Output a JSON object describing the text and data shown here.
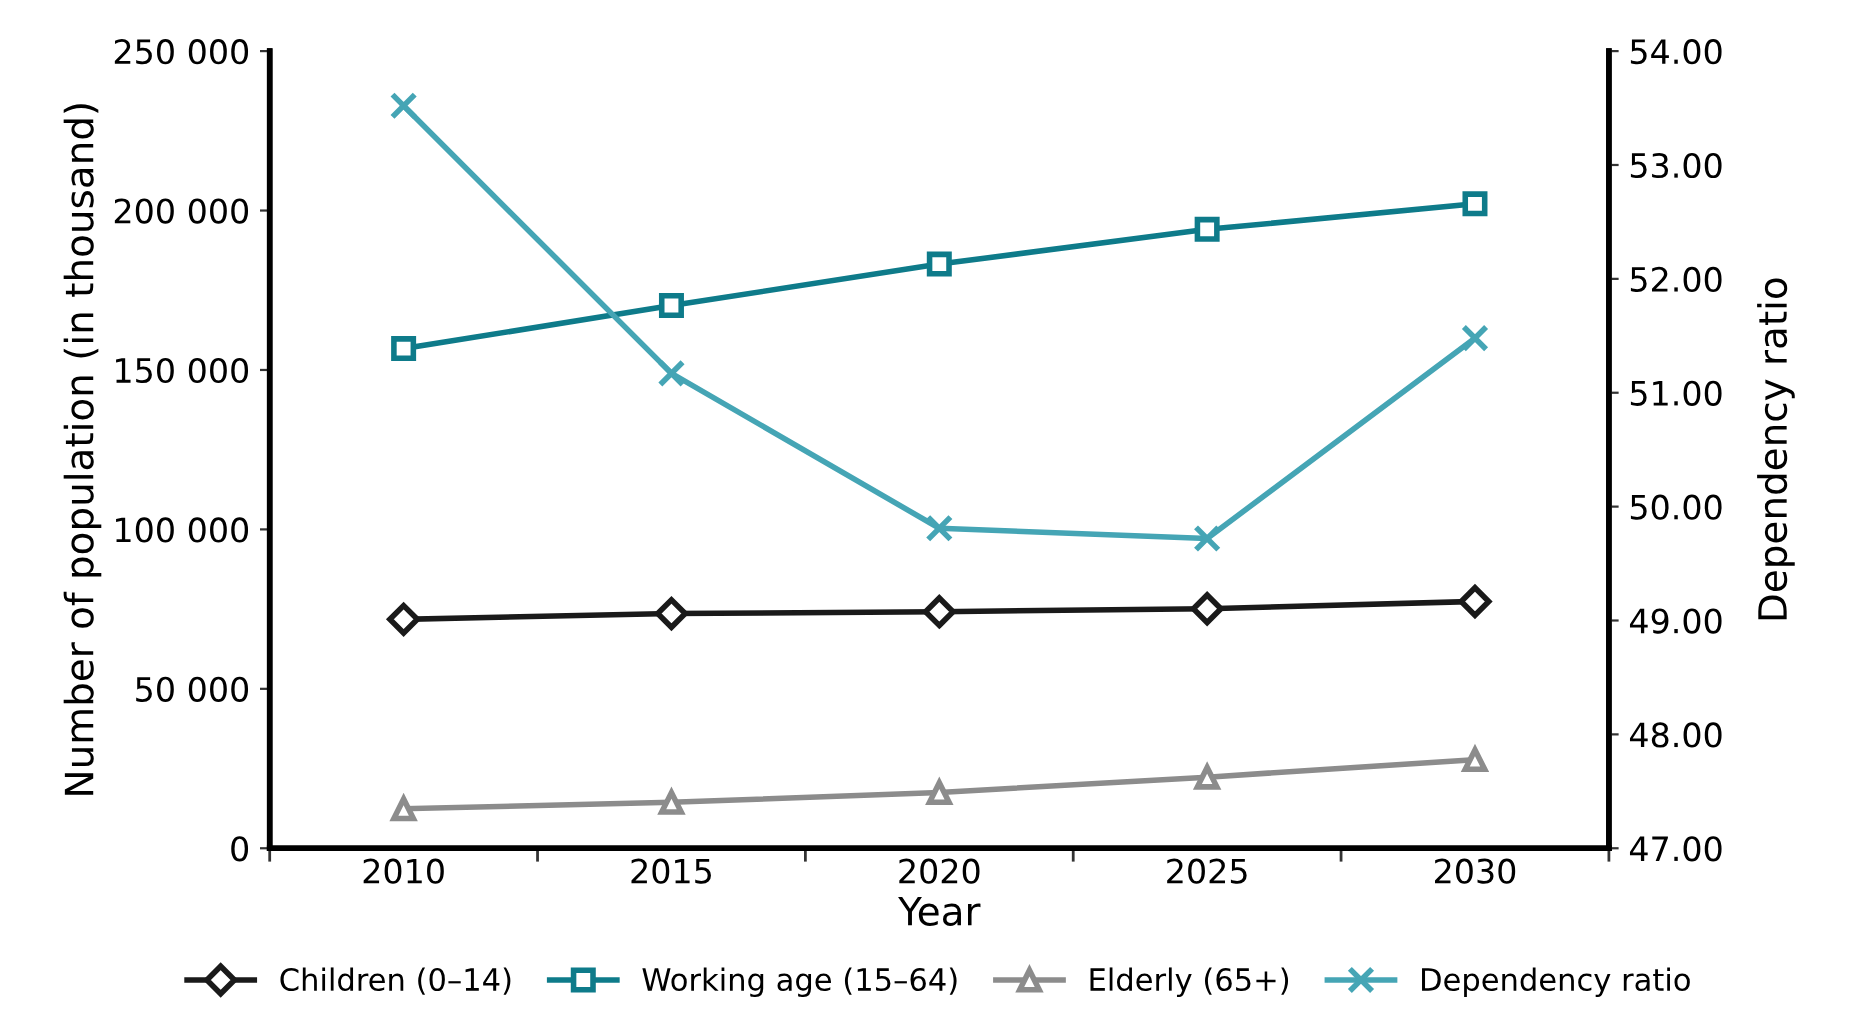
{
  "chart_data": {
    "type": "line",
    "xlabel": "Year",
    "ylabel": "Number of population (in thousand)",
    "y2label": "Dependency ratio",
    "categories": [
      "2010",
      "2015",
      "2020",
      "2025",
      "2030"
    ],
    "series": [
      {
        "name": "Children (0–14)",
        "color": "#1a1a1a",
        "marker": "diamond",
        "values": [
          71800,
          73600,
          74200,
          75100,
          77400
        ]
      },
      {
        "name": "Working age (15–64)",
        "color": "#0e7b8a",
        "marker": "square",
        "values": [
          156700,
          170200,
          183200,
          194100,
          202100
        ]
      },
      {
        "name": "Elderly (65+)",
        "color": "#8c8c8c",
        "marker": "triangle",
        "values": [
          12400,
          14400,
          17500,
          22300,
          27800
        ]
      },
      {
        "name": "Dependency ratio",
        "color": "#45a5b5",
        "marker": "cross",
        "axis": "y2",
        "values": [
          53.52,
          51.17,
          49.81,
          49.72,
          51.48
        ]
      }
    ],
    "ylim": [
      0,
      250000
    ],
    "yticks": [
      0,
      {
        "value": 50000,
        "label": "50 000"
      },
      {
        "value": 100000,
        "label": "100 000"
      },
      {
        "value": 150000,
        "label": "150 000"
      },
      {
        "value": 200000,
        "label": "200 000"
      },
      {
        "value": 250000,
        "label": "250 000"
      }
    ],
    "y2lim": [
      47,
      54
    ],
    "y2ticks": [
      {
        "value": 47,
        "label": "47.00"
      },
      {
        "value": 48,
        "label": "48.00"
      },
      {
        "value": 49,
        "label": "49.00"
      },
      {
        "value": 50,
        "label": "50.00"
      },
      {
        "value": 51,
        "label": "51.00"
      },
      {
        "value": 52,
        "label": "52.00"
      },
      {
        "value": 53,
        "label": "53.00"
      },
      {
        "value": 54,
        "label": "54.00"
      }
    ],
    "grid": false,
    "legend": "bottom"
  }
}
